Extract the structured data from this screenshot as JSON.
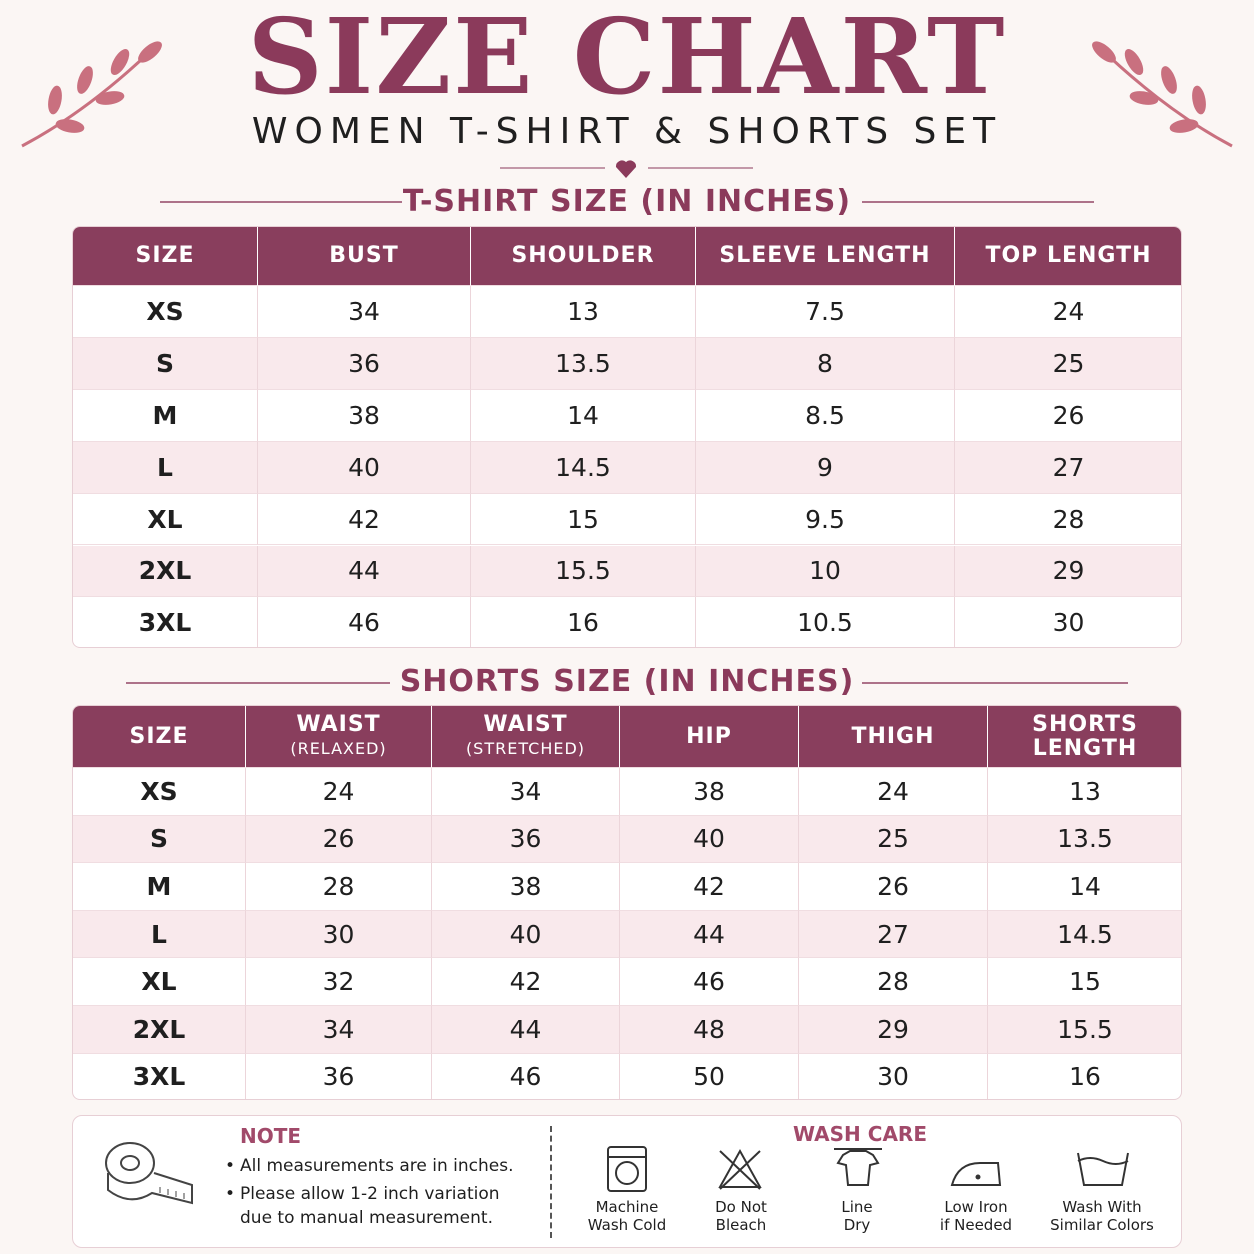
{
  "header": {
    "title": "SIZE CHART",
    "subtitle": "WOMEN T-SHIRT & SHORTS SET"
  },
  "tshirt": {
    "title": "T-SHIRT SIZE (IN INCHES)",
    "columns": [
      "SIZE",
      "BUST",
      "SHOULDER",
      "SLEEVE LENGTH",
      "TOP LENGTH"
    ],
    "rows": [
      [
        "XS",
        "34",
        "13",
        "7.5",
        "24"
      ],
      [
        "S",
        "36",
        "13.5",
        "8",
        "25"
      ],
      [
        "M",
        "38",
        "14",
        "8.5",
        "26"
      ],
      [
        "L",
        "40",
        "14.5",
        "9",
        "27"
      ],
      [
        "XL",
        "42",
        "15",
        "9.5",
        "28"
      ],
      [
        "2XL",
        "44",
        "15.5",
        "10",
        "29"
      ],
      [
        "3XL",
        "46",
        "16",
        "10.5",
        "30"
      ]
    ]
  },
  "shorts": {
    "title": "SHORTS SIZE (IN INCHES)",
    "columns": [
      {
        "label": "SIZE"
      },
      {
        "label": "WAIST",
        "sub": "(RELAXED)"
      },
      {
        "label": "WAIST",
        "sub": "(STRETCHED)"
      },
      {
        "label": "HIP"
      },
      {
        "label": "THIGH"
      },
      {
        "label": "SHORTS LENGTH"
      }
    ],
    "rows": [
      [
        "XS",
        "24",
        "34",
        "38",
        "24",
        "13"
      ],
      [
        "S",
        "26",
        "36",
        "40",
        "25",
        "13.5"
      ],
      [
        "M",
        "28",
        "38",
        "42",
        "26",
        "14"
      ],
      [
        "L",
        "30",
        "40",
        "44",
        "27",
        "14.5"
      ],
      [
        "XL",
        "32",
        "42",
        "46",
        "28",
        "15"
      ],
      [
        "2XL",
        "34",
        "44",
        "48",
        "29",
        "15.5"
      ],
      [
        "3XL",
        "36",
        "46",
        "50",
        "30",
        "16"
      ]
    ]
  },
  "note": {
    "title": "NOTE",
    "items": [
      "All measurements are in inches.",
      "Please allow 1-2 inch variation due to manual measurement."
    ]
  },
  "wash_care": {
    "title": "WASH CARE",
    "items": [
      [
        "Machine",
        "Wash Cold"
      ],
      [
        "Do Not",
        "Bleach"
      ],
      [
        "Line",
        "Dry"
      ],
      [
        "Low Iron",
        "if Needed"
      ],
      [
        "Wash With",
        "Similar Colors"
      ]
    ]
  }
}
